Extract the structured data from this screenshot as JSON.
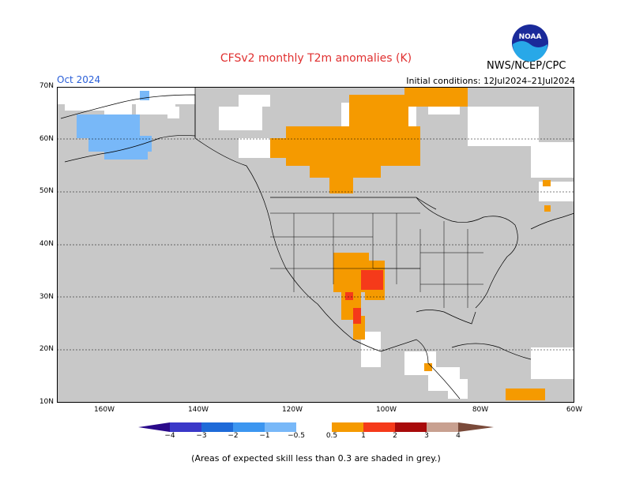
{
  "title": "CFSv2 monthly T2m anomalies (K)",
  "month": "Oct 2024",
  "initial_conditions": "Initial conditions: 12Jul2024–21Jul2024",
  "agency": "NWS/NCEP/CPC",
  "logo_text": "NOAA",
  "note": "(Areas of expected skill less than 0.3 are shaded in grey.)",
  "map": {
    "lat_labels": [
      "70N",
      "60N",
      "50N",
      "40N",
      "30N",
      "20N",
      "10N"
    ],
    "lon_labels": [
      "160W",
      "140W",
      "120W",
      "100W",
      "80W",
      "60W"
    ]
  },
  "colorbar": {
    "labels": [
      "−4",
      "−3",
      "−2",
      "−1",
      "−0.5",
      "0.5",
      "1",
      "2",
      "3",
      "4"
    ],
    "colors": [
      "#2a0a8a",
      "#3a38c8",
      "#1e6ad8",
      "#3c96f0",
      "#78b8f8",
      "#ffffff",
      "#f59a00",
      "#f53a1a",
      "#a80a0a",
      "#c8a090",
      "#7a4a3a"
    ]
  },
  "colors": {
    "land_grey": "#c8c8c8",
    "ocean": "#ffffff",
    "warm_0_5_1": "#f59a00",
    "warm_1_2": "#f53a1a",
    "cold_0_5_1": "#78b8f8"
  }
}
